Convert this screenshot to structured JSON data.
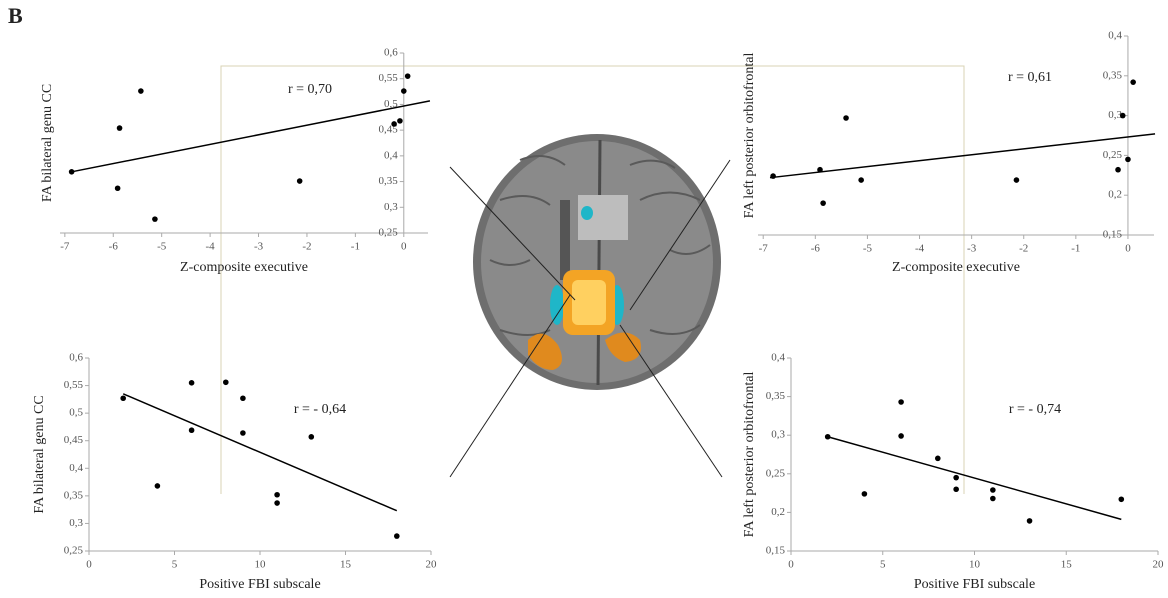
{
  "panel_label": "B",
  "chart_data": [
    {
      "type": "scatter",
      "xlabel": "Z-composite executive",
      "ylabel": "FA bilateral genu CC",
      "annotation": "r = 0,70",
      "color": "#000000",
      "x": [
        -6.86,
        -5.87,
        -5.43,
        -5.91,
        -5.14,
        -2.15,
        0,
        0.08,
        -0.2,
        -0.08
      ],
      "values": [
        0.369,
        0.454,
        0.526,
        0.337,
        0.277,
        0.351,
        0.526,
        0.555,
        0.462,
        0.468
      ],
      "fit": {
        "x": [
          -6.86,
          0.54
        ],
        "y": [
          0.369,
          0.507
        ]
      },
      "xlim": [
        -7.1,
        0.5
      ],
      "ylim": [
        0.25,
        0.6
      ],
      "xticks": [
        -7,
        -6,
        -5,
        -4,
        -3,
        -2,
        -1,
        0
      ],
      "yticks": [
        {
          "value": 0.25,
          "label": "0,25"
        },
        {
          "value": 0.3,
          "label": "0,3"
        },
        {
          "value": 0.35,
          "label": "0,35"
        },
        {
          "value": 0.4,
          "label": "0,4"
        },
        {
          "value": 0.45,
          "label": "0,45"
        },
        {
          "value": 0.5,
          "label": "0,5"
        },
        {
          "value": 0.55,
          "label": "0,55"
        },
        {
          "value": 0.6,
          "label": "0,6"
        }
      ]
    },
    {
      "type": "scatter",
      "xlabel": "Z-composite executive",
      "ylabel": "FA left posterior orbitofrontal",
      "annotation": "r = 0,61",
      "color": "#000000",
      "x": [
        -6.81,
        -5.91,
        -5.85,
        -5.41,
        -5.12,
        -2.14,
        -0.1,
        0.1,
        0,
        -0.19
      ],
      "values": [
        0.224,
        0.232,
        0.19,
        0.297,
        0.219,
        0.219,
        0.3,
        0.342,
        0.245,
        0.232
      ],
      "fit": {
        "x": [
          -6.87,
          0.52
        ],
        "y": [
          0.222,
          0.277
        ]
      },
      "xlim": [
        -7.1,
        0.5
      ],
      "ylim": [
        0.15,
        0.4
      ],
      "xticks": [
        -7,
        -6,
        -5,
        -4,
        -3,
        -2,
        -1,
        0
      ],
      "yticks": [
        {
          "value": 0.15,
          "label": "0,15"
        },
        {
          "value": 0.2,
          "label": "0,2"
        },
        {
          "value": 0.25,
          "label": "0,25"
        },
        {
          "value": 0.3,
          "label": "0,3"
        },
        {
          "value": 0.35,
          "label": "0,35"
        },
        {
          "value": 0.4,
          "label": "0,4"
        }
      ]
    },
    {
      "type": "scatter",
      "xlabel": "Positive FBI subscale",
      "ylabel": "FA bilateral genu CC",
      "annotation": "r = - 0,64",
      "color": "#000000",
      "x": [
        2,
        4,
        6,
        6,
        8,
        9,
        9,
        11,
        11,
        13,
        18
      ],
      "values": [
        0.527,
        0.368,
        0.555,
        0.469,
        0.556,
        0.527,
        0.464,
        0.352,
        0.337,
        0.457,
        0.277
      ],
      "fit": {
        "x": [
          2,
          18
        ],
        "y": [
          0.535,
          0.323
        ]
      },
      "xlim": [
        0,
        20
      ],
      "ylim": [
        0.25,
        0.6
      ],
      "xticks": [
        0,
        5,
        10,
        15,
        20
      ],
      "yticks": [
        {
          "value": 0.25,
          "label": "0,25"
        },
        {
          "value": 0.3,
          "label": "0,3"
        },
        {
          "value": 0.35,
          "label": "0,35"
        },
        {
          "value": 0.4,
          "label": "0,4"
        },
        {
          "value": 0.45,
          "label": "0,45"
        },
        {
          "value": 0.5,
          "label": "0,5"
        },
        {
          "value": 0.55,
          "label": "0,55"
        },
        {
          "value": 0.6,
          "label": "0,6"
        }
      ]
    },
    {
      "type": "scatter",
      "xlabel": "Positive FBI subscale",
      "ylabel": "FA left posterior orbitofrontal",
      "annotation": "r = - 0,74",
      "color": "#000000",
      "x": [
        2,
        4,
        6,
        6,
        8,
        9,
        9,
        11,
        11,
        13,
        18
      ],
      "values": [
        0.298,
        0.224,
        0.343,
        0.299,
        0.27,
        0.245,
        0.23,
        0.229,
        0.218,
        0.189,
        0.217
      ],
      "fit": {
        "x": [
          2,
          18
        ],
        "y": [
          0.298,
          0.191
        ]
      },
      "xlim": [
        0,
        20
      ],
      "ylim": [
        0.15,
        0.4
      ],
      "xticks": [
        0,
        5,
        10,
        15,
        20
      ],
      "yticks": [
        {
          "value": 0.15,
          "label": "0,15"
        },
        {
          "value": 0.2,
          "label": "0,2"
        },
        {
          "value": 0.25,
          "label": "0,25"
        },
        {
          "value": 0.3,
          "label": "0,3"
        },
        {
          "value": 0.35,
          "label": "0,35"
        },
        {
          "value": 0.4,
          "label": "0,4"
        }
      ]
    }
  ]
}
